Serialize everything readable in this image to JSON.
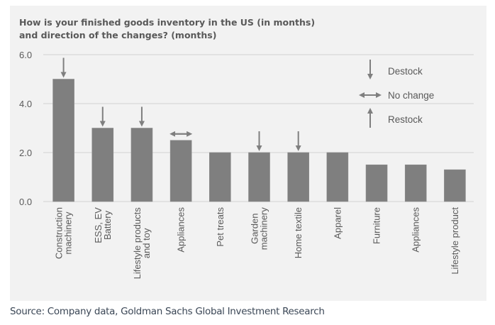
{
  "chart_data": {
    "type": "bar",
    "title": "How is your finished goods inventory in the US (in months) and direction of the changes? (months)",
    "title_lines": [
      "How is your finished goods inventory in the US (in months)",
      "and direction of the changes? (months)"
    ],
    "xlabel": "",
    "ylabel": "",
    "ylim": [
      0,
      6
    ],
    "yticks": [
      0,
      2,
      4,
      6
    ],
    "ytick_labels": [
      "0.0",
      "2.0",
      "4.0",
      "6.0"
    ],
    "grid": true,
    "categories": [
      [
        "Construction",
        "machinery"
      ],
      [
        "ESS, EV",
        "Battery"
      ],
      [
        "Lifestyle products",
        "and toy"
      ],
      [
        "Appliances"
      ],
      [
        "Pet treats"
      ],
      [
        "Garden",
        "machinery"
      ],
      [
        "Home textile"
      ],
      [
        "Apparel"
      ],
      [
        "Furniture"
      ],
      [
        "Appliances"
      ],
      [
        "Lifestyle product"
      ]
    ],
    "values": [
      5.0,
      3.0,
      3.0,
      2.5,
      2.0,
      2.0,
      2.0,
      2.0,
      1.5,
      1.5,
      1.3
    ],
    "direction": [
      "destock",
      "destock",
      "destock",
      "no-change",
      null,
      "destock",
      "destock",
      null,
      null,
      null,
      null
    ],
    "bar_color": "#7f7f7f",
    "legend": [
      {
        "key": "destock",
        "label": "Destock"
      },
      {
        "key": "no-change",
        "label": "No change"
      },
      {
        "key": "restock",
        "label": "Restock"
      }
    ],
    "legend_position": "top-right"
  },
  "source": "Source: Company data, Goldman Sachs Global Investment Research"
}
